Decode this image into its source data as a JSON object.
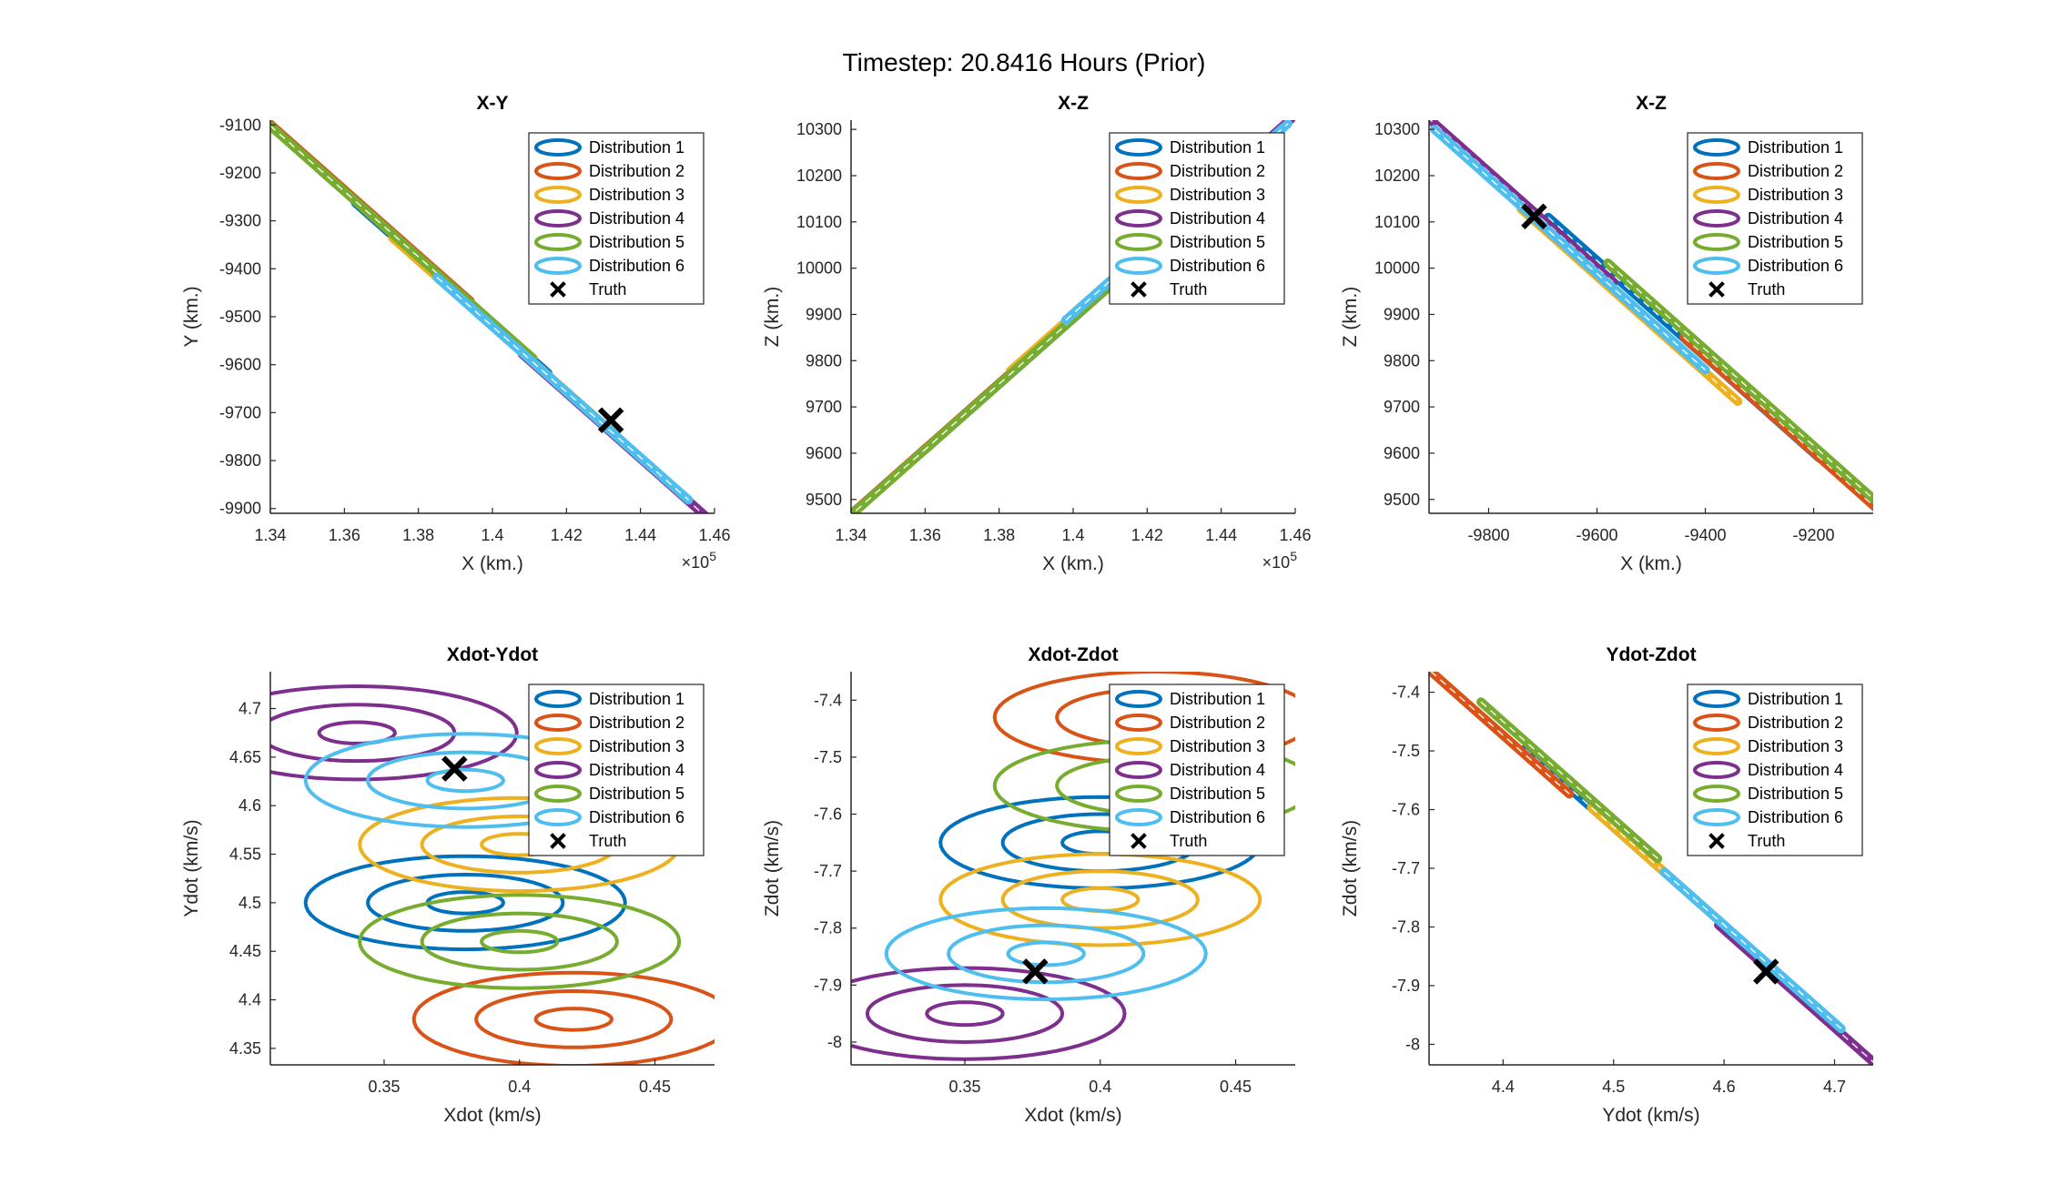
{
  "figure": {
    "title": "Timestep: 20.8416 Hours (Prior)"
  },
  "colors": {
    "Distribution 1": "#0072BD",
    "Distribution 2": "#D95319",
    "Distribution 3": "#EDB120",
    "Distribution 4": "#7E2F8E",
    "Distribution 5": "#77AC30",
    "Distribution 6": "#4DBEEE",
    "Truth": "#000000"
  },
  "chart_data": [
    {
      "type": "scatter",
      "title": "X-Y",
      "xlabel": "X (km.)",
      "ylabel": "Y (km.)",
      "xlim": [
        134000,
        146000
      ],
      "ylim": [
        -9910,
        -9090
      ],
      "xticks": [
        134000,
        136000,
        138000,
        140000,
        142000,
        144000,
        146000
      ],
      "xtick_labels": [
        "1.34",
        "1.36",
        "1.38",
        "1.4",
        "1.42",
        "1.44",
        "1.46"
      ],
      "x_exponent": "×10^5",
      "yticks": [
        -9100,
        -9200,
        -9300,
        -9400,
        -9500,
        -9600,
        -9700,
        -9800,
        -9900
      ],
      "ytick_labels": [
        "-9100",
        "-9200",
        "-9300",
        "-9400",
        "-9500",
        "-9600",
        "-9700",
        "-9800",
        "-9900"
      ],
      "legend": [
        "Distribution 1",
        "Distribution 2",
        "Distribution 3",
        "Distribution 4",
        "Distribution 5",
        "Distribution 6",
        "Truth"
      ],
      "legend_location": "top-right",
      "series": [
        {
          "name": "Distribution 1",
          "cx": 138900,
          "cy": -9440,
          "a": 2600,
          "b": 0.01,
          "angle": 0
        },
        {
          "name": "Distribution 2",
          "cx": 134900,
          "cy": -9160,
          "a": 4500,
          "b": 0.01,
          "angle": 0
        },
        {
          "name": "Distribution 3",
          "cx": 140300,
          "cy": -9540,
          "a": 3000,
          "b": 0.01,
          "angle": 0
        },
        {
          "name": "Distribution 4",
          "cx": 144500,
          "cy": -9830,
          "a": 3700,
          "b": 0.01,
          "angle": 0
        },
        {
          "name": "Distribution 5",
          "cx": 136900,
          "cy": -9300,
          "a": 4200,
          "b": 0.01,
          "angle": 0
        },
        {
          "name": "Distribution 6",
          "cx": 141900,
          "cy": -9650,
          "a": 3400,
          "b": 0.01,
          "angle": 0
        }
      ],
      "truth": {
        "x": 143200,
        "y": -9716
      }
    },
    {
      "type": "scatter",
      "title": "X-Z",
      "xlabel": "X (km.)",
      "ylabel": "Z (km.)",
      "xlim": [
        134000,
        146000
      ],
      "ylim": [
        9470,
        10320
      ],
      "xticks": [
        134000,
        136000,
        138000,
        140000,
        142000,
        144000,
        146000
      ],
      "xtick_labels": [
        "1.34",
        "1.36",
        "1.38",
        "1.4",
        "1.42",
        "1.44",
        "1.46"
      ],
      "x_exponent": "×10^5",
      "yticks": [
        9500,
        9600,
        9700,
        9800,
        9900,
        10000,
        10100,
        10200,
        10300
      ],
      "ytick_labels": [
        "9500",
        "9600",
        "9700",
        "9800",
        "9900",
        "10000",
        "10100",
        "10200",
        "10300"
      ],
      "legend": [
        "Distribution 1",
        "Distribution 2",
        "Distribution 3",
        "Distribution 4",
        "Distribution 5",
        "Distribution 6",
        "Truth"
      ],
      "legend_location": "top-right",
      "series": [
        {
          "name": "Distribution 1",
          "cx": 139000,
          "cy": 9820,
          "a": 3000,
          "b": 0.012,
          "angle": 0
        },
        {
          "name": "Distribution 2",
          "cx": 135300,
          "cy": 9560,
          "a": 4000,
          "b": 0.012,
          "angle": 0
        },
        {
          "name": "Distribution 3",
          "cx": 141300,
          "cy": 9990,
          "a": 3000,
          "b": 0.012,
          "angle": 0
        },
        {
          "name": "Distribution 4",
          "cx": 145000,
          "cy": 10260,
          "a": 3000,
          "b": 0.012,
          "angle": 0
        },
        {
          "name": "Distribution 5",
          "cx": 137300,
          "cy": 9700,
          "a": 4200,
          "b": 0.012,
          "angle": 0
        },
        {
          "name": "Distribution 6",
          "cx": 142800,
          "cy": 10100,
          "a": 3000,
          "b": 0.012,
          "angle": 0
        }
      ]
    },
    {
      "type": "scatter",
      "title": "X-Z",
      "xlabel": "X (km.)",
      "ylabel": "Z (km.)",
      "xlim": [
        -9910,
        -9090
      ],
      "ylim": [
        9470,
        10320
      ],
      "xticks": [
        -9800,
        -9600,
        -9400,
        -9200
      ],
      "xtick_labels": [
        "-9800",
        "-9600",
        "-9400",
        "-9200"
      ],
      "yticks": [
        9500,
        9600,
        9700,
        9800,
        9900,
        10000,
        10100,
        10200,
        10300
      ],
      "ytick_labels": [
        "9500",
        "9600",
        "9700",
        "9800",
        "9900",
        "10000",
        "10100",
        "10200",
        "10300"
      ],
      "legend": [
        "Distribution 1",
        "Distribution 2",
        "Distribution 3",
        "Distribution 4",
        "Distribution 5",
        "Distribution 6",
        "Truth"
      ],
      "legend_location": "top-right",
      "series": [
        {
          "name": "Distribution 1",
          "cx": -9440,
          "cy": 9850,
          "a": 250,
          "b": 0.012,
          "angle": 0
        },
        {
          "name": "Distribution 2",
          "cx": -9160,
          "cy": 9560,
          "a": 280,
          "b": 0.012,
          "angle": 0
        },
        {
          "name": "Distribution 3",
          "cx": -9540,
          "cy": 9920,
          "a": 200,
          "b": 0.012,
          "angle": 0
        },
        {
          "name": "Distribution 4",
          "cx": -9830,
          "cy": 10240,
          "a": 260,
          "b": 0.012,
          "angle": 0
        },
        {
          "name": "Distribution 5",
          "cx": -9300,
          "cy": 9720,
          "a": 280,
          "b": 0.012,
          "angle": 0
        },
        {
          "name": "Distribution 6",
          "cx": -9650,
          "cy": 10040,
          "a": 250,
          "b": 0.012,
          "angle": 0
        }
      ],
      "truth": {
        "x": -9716,
        "y": 10112
      }
    },
    {
      "type": "scatter",
      "title": "Xdot-Ydot",
      "xlabel": "Xdot (km/s)",
      "ylabel": "Ydot (km/s)",
      "xlim": [
        0.308,
        0.472
      ],
      "ylim": [
        4.333,
        4.738
      ],
      "xticks": [
        0.35,
        0.4,
        0.45
      ],
      "xtick_labels": [
        "0.35",
        "0.4",
        "0.45"
      ],
      "yticks": [
        4.35,
        4.4,
        4.45,
        4.5,
        4.55,
        4.6,
        4.65,
        4.7
      ],
      "ytick_labels": [
        "4.35",
        "4.4",
        "4.45",
        "4.5",
        "4.55",
        "4.6",
        "4.65",
        "4.7"
      ],
      "legend": [
        "Distribution 1",
        "Distribution 2",
        "Distribution 3",
        "Distribution 4",
        "Distribution 5",
        "Distribution 6",
        "Truth"
      ],
      "legend_location": "top-right",
      "series": [
        {
          "name": "Distribution 1",
          "cx": 0.38,
          "cy": 4.5,
          "rings": [
            [
              0.059,
              0.048
            ],
            [
              0.036,
              0.029
            ],
            [
              0.014,
              0.011
            ]
          ]
        },
        {
          "name": "Distribution 2",
          "cx": 0.42,
          "cy": 4.38,
          "rings": [
            [
              0.059,
              0.048
            ],
            [
              0.036,
              0.029
            ],
            [
              0.014,
              0.011
            ]
          ]
        },
        {
          "name": "Distribution 3",
          "cx": 0.4,
          "cy": 4.56,
          "rings": [
            [
              0.059,
              0.048
            ],
            [
              0.036,
              0.029
            ],
            [
              0.014,
              0.011
            ]
          ]
        },
        {
          "name": "Distribution 4",
          "cx": 0.34,
          "cy": 4.675,
          "rings": [
            [
              0.059,
              0.048
            ],
            [
              0.036,
              0.029
            ],
            [
              0.014,
              0.011
            ]
          ]
        },
        {
          "name": "Distribution 5",
          "cx": 0.4,
          "cy": 4.46,
          "rings": [
            [
              0.059,
              0.048
            ],
            [
              0.036,
              0.029
            ],
            [
              0.014,
              0.011
            ]
          ]
        },
        {
          "name": "Distribution 6",
          "cx": 0.38,
          "cy": 4.626,
          "rings": [
            [
              0.059,
              0.048
            ],
            [
              0.036,
              0.029
            ],
            [
              0.014,
              0.011
            ]
          ]
        }
      ],
      "truth": {
        "x": 0.376,
        "y": 4.638
      }
    },
    {
      "type": "scatter",
      "title": "Xdot-Zdot",
      "xlabel": "Xdot (km/s)",
      "ylabel": "Zdot (km/s)",
      "xlim": [
        0.308,
        0.472
      ],
      "ylim": [
        -8.04,
        -7.35
      ],
      "xticks": [
        0.35,
        0.4,
        0.45
      ],
      "xtick_labels": [
        "0.35",
        "0.4",
        "0.45"
      ],
      "yticks": [
        -8,
        -7.9,
        -7.8,
        -7.7,
        -7.6,
        -7.5,
        -7.4
      ],
      "ytick_labels": [
        "-8",
        "-7.9",
        "-7.8",
        "-7.7",
        "-7.6",
        "-7.5",
        "-7.4"
      ],
      "legend": [
        "Distribution 1",
        "Distribution 2",
        "Distribution 3",
        "Distribution 4",
        "Distribution 5",
        "Distribution 6",
        "Truth"
      ],
      "legend_location": "top-right",
      "series": [
        {
          "name": "Distribution 1",
          "cx": 0.4,
          "cy": -7.65,
          "rings": [
            [
              0.059,
              0.08
            ],
            [
              0.036,
              0.05
            ],
            [
              0.014,
              0.02
            ]
          ]
        },
        {
          "name": "Distribution 2",
          "cx": 0.42,
          "cy": -7.43,
          "rings": [
            [
              0.059,
              0.08
            ],
            [
              0.036,
              0.05
            ],
            [
              0.014,
              0.02
            ]
          ]
        },
        {
          "name": "Distribution 3",
          "cx": 0.4,
          "cy": -7.75,
          "rings": [
            [
              0.059,
              0.08
            ],
            [
              0.036,
              0.05
            ],
            [
              0.014,
              0.02
            ]
          ]
        },
        {
          "name": "Distribution 4",
          "cx": 0.35,
          "cy": -7.95,
          "rings": [
            [
              0.059,
              0.08
            ],
            [
              0.036,
              0.05
            ],
            [
              0.014,
              0.02
            ]
          ]
        },
        {
          "name": "Distribution 5",
          "cx": 0.42,
          "cy": -7.55,
          "rings": [
            [
              0.059,
              0.08
            ],
            [
              0.036,
              0.05
            ],
            [
              0.014,
              0.02
            ]
          ]
        },
        {
          "name": "Distribution 6",
          "cx": 0.38,
          "cy": -7.845,
          "rings": [
            [
              0.059,
              0.08
            ],
            [
              0.036,
              0.05
            ],
            [
              0.014,
              0.02
            ]
          ]
        }
      ],
      "truth": {
        "x": 0.376,
        "y": -7.876
      }
    },
    {
      "type": "scatter",
      "title": "Ydot-Zdot",
      "xlabel": "Ydot (km/s)",
      "ylabel": "Zdot (km/s)",
      "xlim": [
        4.333,
        4.735
      ],
      "ylim": [
        -8.035,
        -7.365
      ],
      "xticks": [
        4.4,
        4.5,
        4.6,
        4.7
      ],
      "xtick_labels": [
        "4.4",
        "4.5",
        "4.6",
        "4.7"
      ],
      "yticks": [
        -8,
        -7.9,
        -7.8,
        -7.7,
        -7.6,
        -7.5,
        -7.4
      ],
      "ytick_labels": [
        "-8",
        "-7.9",
        "-7.8",
        "-7.7",
        "-7.6",
        "-7.5",
        "-7.4"
      ],
      "legend": [
        "Distribution 1",
        "Distribution 2",
        "Distribution 3",
        "Distribution 4",
        "Distribution 5",
        "Distribution 6",
        "Truth"
      ],
      "legend_location": "top-right",
      "series": [
        {
          "name": "Distribution 1",
          "cx": 4.5,
          "cy": -7.63,
          "a": 0.08,
          "b": 0.00025,
          "angle": 0
        },
        {
          "name": "Distribution 2",
          "cx": 4.38,
          "cy": -7.44,
          "a": 0.08,
          "b": 0.00025,
          "angle": 0
        },
        {
          "name": "Distribution 3",
          "cx": 4.56,
          "cy": -7.73,
          "a": 0.08,
          "b": 0.00025,
          "angle": 0
        },
        {
          "name": "Distribution 4",
          "cx": 4.675,
          "cy": -7.93,
          "a": 0.08,
          "b": 0.00025,
          "angle": 0
        },
        {
          "name": "Distribution 5",
          "cx": 4.46,
          "cy": -7.55,
          "a": 0.08,
          "b": 0.00025,
          "angle": 0
        },
        {
          "name": "Distribution 6",
          "cx": 4.626,
          "cy": -7.84,
          "a": 0.08,
          "b": 0.00025,
          "angle": 0
        }
      ],
      "truth": {
        "x": 4.638,
        "y": -7.876
      }
    }
  ]
}
